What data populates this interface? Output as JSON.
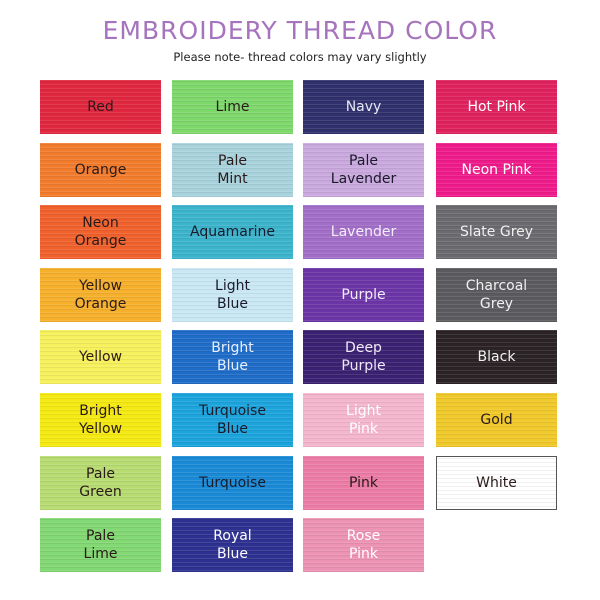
{
  "title": "EMBROIDERY THREAD COLOR",
  "subtitle": "Please note- thread colors may vary slightly",
  "columns": [
    [
      {
        "name": "Red",
        "color": "#e0273f",
        "text": "#2a1a1a"
      },
      {
        "name": "Orange",
        "color": "#f27c2c",
        "text": "#2a1a1a"
      },
      {
        "name": "Neon\nOrange",
        "color": "#f0612c",
        "text": "#2a1a1a"
      },
      {
        "name": "Yellow\nOrange",
        "color": "#f6b02c",
        "text": "#2a1a1a"
      },
      {
        "name": "Yellow",
        "color": "#f6f05c",
        "text": "#2a1a1a"
      },
      {
        "name": "Bright\nYellow",
        "color": "#f4ea12",
        "text": "#2a1a1a"
      },
      {
        "name": "Pale\nGreen",
        "color": "#b8dc72",
        "text": "#2a1a1a"
      },
      {
        "name": "Pale\nLime",
        "color": "#82d872",
        "text": "#2a1a1a"
      }
    ],
    [
      {
        "name": "Lime",
        "color": "#7ed86c",
        "text": "#2a1a1a"
      },
      {
        "name": "Pale\nMint",
        "color": "#a9d3dc",
        "text": "#2a1a1a"
      },
      {
        "name": "Aquamarine",
        "color": "#3cb4cc",
        "text": "#1a1a2a"
      },
      {
        "name": "Light\nBlue",
        "color": "#c9e8f4",
        "text": "#1a1a2a"
      },
      {
        "name": "Bright\nBlue",
        "color": "#1f6cc8",
        "text": "#e8f0ff"
      },
      {
        "name": "Turquoise\nBlue",
        "color": "#1ca4dc",
        "text": "#1a1a2a"
      },
      {
        "name": "Turquoise",
        "color": "#1a8ad6",
        "text": "#1a1a2a"
      },
      {
        "name": "Royal\nBlue",
        "color": "#2e3190",
        "text": "#ffffff"
      }
    ],
    [
      {
        "name": "Navy",
        "color": "#2f306c",
        "text": "#e8e8f4"
      },
      {
        "name": "Pale\nLavender",
        "color": "#caa9de",
        "text": "#1a1a2a"
      },
      {
        "name": "Lavender",
        "color": "#a26ec8",
        "text": "#f4eefa"
      },
      {
        "name": "Purple",
        "color": "#6b35a8",
        "text": "#f4eefa"
      },
      {
        "name": "Deep\nPurple",
        "color": "#3b2172",
        "text": "#f0eaf8"
      },
      {
        "name": "Light\nPink",
        "color": "#f4b6cc",
        "text": "#ffffff"
      },
      {
        "name": "Pink",
        "color": "#ec7ca6",
        "text": "#2a1a1a"
      },
      {
        "name": "Rose\nPink",
        "color": "#ec92b2",
        "text": "#ffffff"
      }
    ],
    [
      {
        "name": "Hot Pink",
        "color": "#df225e",
        "text": "#ffffff"
      },
      {
        "name": "Neon Pink",
        "color": "#ef1b8a",
        "text": "#ffffff"
      },
      {
        "name": "Slate Grey",
        "color": "#6b6b6f",
        "text": "#f0f0f0"
      },
      {
        "name": "Charcoal\nGrey",
        "color": "#5b5b5f",
        "text": "#f0f0f0"
      },
      {
        "name": "Black",
        "color": "#2b2325",
        "text": "#f0f0f0"
      },
      {
        "name": "Gold",
        "color": "#f0c92a",
        "text": "#2a1a1a"
      },
      {
        "name": "White",
        "color": "#ffffff",
        "text": "#2a1a1a"
      }
    ]
  ]
}
